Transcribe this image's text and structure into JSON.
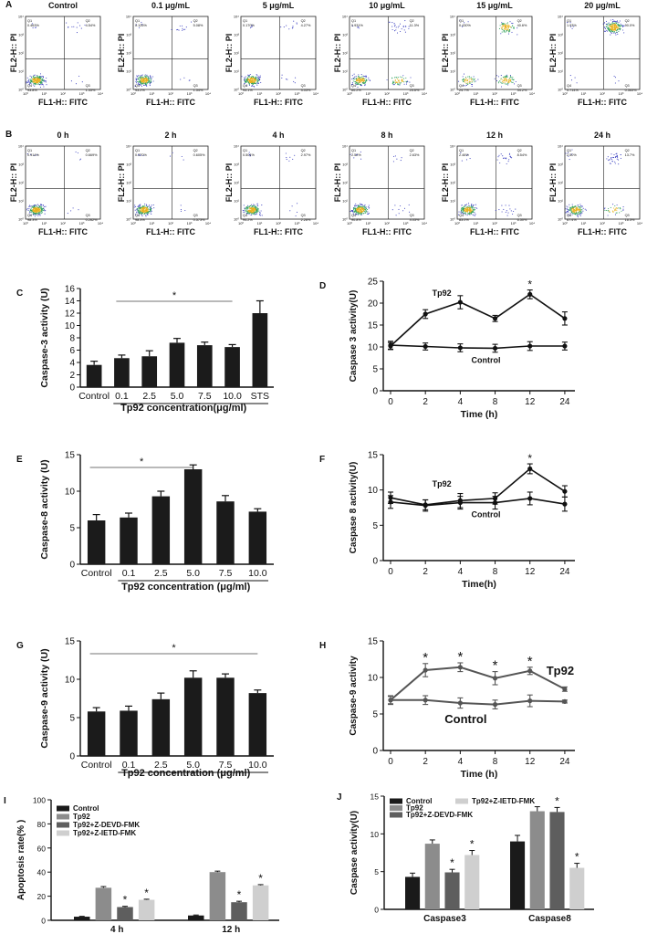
{
  "figure": {
    "panel_letters": [
      "A",
      "B",
      "C",
      "D",
      "E",
      "F",
      "G",
      "H",
      "I",
      "J"
    ],
    "flow_axis": {
      "x": "FL1-H:: FITC",
      "y": "FL2-H:: PI"
    },
    "flow_ticks": [
      "10⁰",
      "10¹",
      "10²",
      "10³",
      "10⁴"
    ],
    "rowA": [
      {
        "title": "Control",
        "q": [
          "0.463%",
          "4.54%",
          "93.8%",
          "1.35%"
        ]
      },
      {
        "title": "0.1 μg/mL",
        "q": [
          "0.126%",
          "5.08%",
          "93.2%",
          "1.54%"
        ]
      },
      {
        "title": "5 μg/mL",
        "q": [
          "0.170%",
          "4.27%",
          "93.1%",
          "3.03%"
        ]
      },
      {
        "title": "10 μg/mL",
        "q": [
          "0.931%",
          "11.3%",
          "60.2%",
          "25.6%"
        ]
      },
      {
        "title": "15 μg/mL",
        "q": [
          "0.430%",
          "40.6%",
          "24.7%",
          "34.2%"
        ]
      },
      {
        "title": "20 μg/mL",
        "q": [
          "1.93%",
          "90.0%",
          "0.714%",
          "0.565%"
        ]
      }
    ],
    "rowB": [
      {
        "title": "0 h",
        "q": [
          "0.914%",
          "0.669%",
          "98.3%",
          "0.262%"
        ]
      },
      {
        "title": "2 h",
        "q": [
          "0.370%",
          "0.605%",
          "98.3%",
          "0.573%"
        ]
      },
      {
        "title": "4 h",
        "q": [
          "0.501%",
          "2.97%",
          "94.2%",
          "2.26%"
        ]
      },
      {
        "title": "8 h",
        "q": [
          "2.52%",
          "2.63%",
          "90.8%",
          "4.03%"
        ]
      },
      {
        "title": "12 h",
        "q": [
          "2.46%",
          "8.54%",
          "83.0%",
          "6.50%"
        ]
      },
      {
        "title": "24 h",
        "q": [
          "2.50%",
          "13.7%",
          "67.4%",
          "16.3%"
        ]
      }
    ]
  },
  "chart_data": [
    {
      "id": "C",
      "type": "bar",
      "ylabel": "Caspase-3 activity (U)",
      "xlabel": "Tp92 concentration(μg/ml)",
      "categories": [
        "Control",
        "0.1",
        "2.5",
        "5.0",
        "7.5",
        "10.0",
        "STS"
      ],
      "values": [
        3.6,
        4.7,
        5.0,
        7.2,
        6.8,
        6.5,
        12.0
      ],
      "errors": [
        0.6,
        0.5,
        0.9,
        0.7,
        0.5,
        0.4,
        2.0
      ],
      "ylim": [
        0,
        16
      ],
      "yticks": [
        0,
        2,
        4,
        6,
        8,
        10,
        12,
        14,
        16
      ],
      "sig_label": "*",
      "underline_from": 1,
      "underline_to": 5
    },
    {
      "id": "D",
      "type": "line",
      "ylabel": "Caspase 3  activity(U)",
      "xlabel": "Time (h)",
      "categories": [
        "0",
        "2",
        "4",
        "8",
        "12",
        "24"
      ],
      "series": [
        {
          "name": "Tp92",
          "values": [
            10.2,
            17.5,
            20.2,
            16.5,
            22.0,
            16.5
          ],
          "errors": [
            0.8,
            1.0,
            1.5,
            0.7,
            1.0,
            1.5
          ]
        },
        {
          "name": "Control",
          "values": [
            10.4,
            10.1,
            9.8,
            9.7,
            10.2,
            10.2
          ],
          "errors": [
            0.9,
            0.8,
            0.9,
            0.9,
            1.0,
            0.9
          ]
        }
      ],
      "ylim": [
        0,
        25
      ],
      "yticks": [
        0,
        5,
        10,
        15,
        20,
        25
      ],
      "sig_label": "*",
      "sig_index": 4
    },
    {
      "id": "E",
      "type": "bar",
      "ylabel": "Caspase-8 activity (U)",
      "xlabel": "Tp92 concentration (μg/ml)",
      "categories": [
        "Control",
        "0.1",
        "2.5",
        "5.0",
        "7.5",
        "10.0"
      ],
      "values": [
        6.0,
        6.4,
        9.3,
        13.0,
        8.6,
        7.2
      ],
      "errors": [
        0.8,
        0.6,
        0.7,
        0.6,
        0.8,
        0.4
      ],
      "ylim": [
        0,
        15
      ],
      "yticks": [
        0,
        5,
        10,
        15
      ],
      "sig_label": "*",
      "underline_from": 0,
      "underline_to": 3
    },
    {
      "id": "F",
      "type": "line",
      "ylabel": "Caspase 8  activity(U)",
      "xlabel": "Time(h)",
      "categories": [
        "0",
        "2",
        "4",
        "8",
        "12",
        "24"
      ],
      "series": [
        {
          "name": "Tp92",
          "values": [
            8.9,
            7.9,
            8.5,
            8.8,
            13.0,
            9.8
          ],
          "errors": [
            0.8,
            0.7,
            1.0,
            0.8,
            0.7,
            0.8
          ]
        },
        {
          "name": "Control",
          "values": [
            8.3,
            7.8,
            8.2,
            8.2,
            8.8,
            8.0
          ],
          "errors": [
            0.9,
            0.8,
            0.9,
            0.9,
            0.9,
            1.0
          ]
        }
      ],
      "ylim": [
        0,
        15
      ],
      "yticks": [
        0,
        5,
        10,
        15
      ],
      "sig_label": "*",
      "sig_index": 4
    },
    {
      "id": "G",
      "type": "bar",
      "ylabel": "Caspase-9 activity (U)",
      "xlabel": "Tp92 concentration (μg/ml)",
      "categories": [
        "Control",
        "0.1",
        "2.5",
        "5.0",
        "7.5",
        "10.0"
      ],
      "values": [
        5.8,
        5.9,
        7.4,
        10.2,
        10.2,
        8.2
      ],
      "errors": [
        0.5,
        0.6,
        0.8,
        0.9,
        0.5,
        0.4
      ],
      "ylim": [
        0,
        15
      ],
      "yticks": [
        0,
        5,
        10,
        15
      ],
      "sig_label": "*",
      "underline_from": 0,
      "underline_to": 5
    },
    {
      "id": "H",
      "type": "line",
      "ylabel": "Caspase-9 activity",
      "xlabel": "Time (h)",
      "categories": [
        "0",
        "2",
        "4",
        "8",
        "12",
        "24"
      ],
      "series": [
        {
          "name": "Tp92",
          "values": [
            6.9,
            11.0,
            11.4,
            9.9,
            10.9,
            8.4
          ],
          "errors": [
            0.5,
            0.9,
            0.6,
            0.9,
            0.5,
            0.3
          ]
        },
        {
          "name": "Control",
          "values": [
            6.9,
            6.9,
            6.5,
            6.3,
            6.8,
            6.7
          ],
          "errors": [
            0.6,
            0.6,
            0.7,
            0.6,
            0.8,
            0.2
          ]
        }
      ],
      "ylim": [
        0,
        15
      ],
      "yticks": [
        0,
        5,
        10,
        15
      ],
      "sig_label": "*",
      "sig_indices": [
        1,
        2,
        3,
        4
      ]
    },
    {
      "id": "I",
      "type": "bar",
      "ylabel": "Apoptosis rate(% )",
      "xlabel": "",
      "categories": [
        "4 h",
        "12 h"
      ],
      "series": [
        {
          "name": "Control",
          "values": [
            3.0,
            4.0
          ],
          "errors": [
            0.3,
            0.4
          ]
        },
        {
          "name": "Tp92",
          "values": [
            27.0,
            40.0
          ],
          "errors": [
            1.0,
            0.8
          ]
        },
        {
          "name": "Tp92+Z-DEVD-FMK",
          "values": [
            11.0,
            15.0
          ],
          "errors": [
            0.6,
            0.8
          ]
        },
        {
          "name": "Tp92+Z-IETD-FMK",
          "values": [
            17.0,
            29.0
          ],
          "errors": [
            0.5,
            0.6
          ]
        }
      ],
      "colors": [
        "#1a1a1a",
        "#8c8c8c",
        "#5e5e5e",
        "#cfcfcf"
      ],
      "ylim": [
        0,
        100
      ],
      "yticks": [
        0,
        20,
        40,
        60,
        80,
        100
      ],
      "sig_label": "*"
    },
    {
      "id": "J",
      "type": "bar",
      "ylabel": "Caspase  activity(U)",
      "xlabel": "",
      "categories": [
        "Caspase3",
        "Caspase8"
      ],
      "series": [
        {
          "name": "Control",
          "values": [
            4.3,
            9.0
          ],
          "errors": [
            0.5,
            0.8
          ]
        },
        {
          "name": "Tp92",
          "values": [
            8.7,
            13.0
          ],
          "errors": [
            0.5,
            0.6
          ]
        },
        {
          "name": "Tp92+Z-DEVD-FMK",
          "values": [
            4.9,
            12.9
          ],
          "errors": [
            0.4,
            0.6
          ]
        },
        {
          "name": "Tp92+Z-IETD-FMK",
          "values": [
            7.2,
            5.5
          ],
          "errors": [
            0.6,
            0.6
          ]
        }
      ],
      "colors": [
        "#1a1a1a",
        "#8c8c8c",
        "#5e5e5e",
        "#cfcfcf"
      ],
      "ylim": [
        0,
        15
      ],
      "yticks": [
        0,
        5,
        10,
        15
      ],
      "sig_label": "*"
    }
  ]
}
